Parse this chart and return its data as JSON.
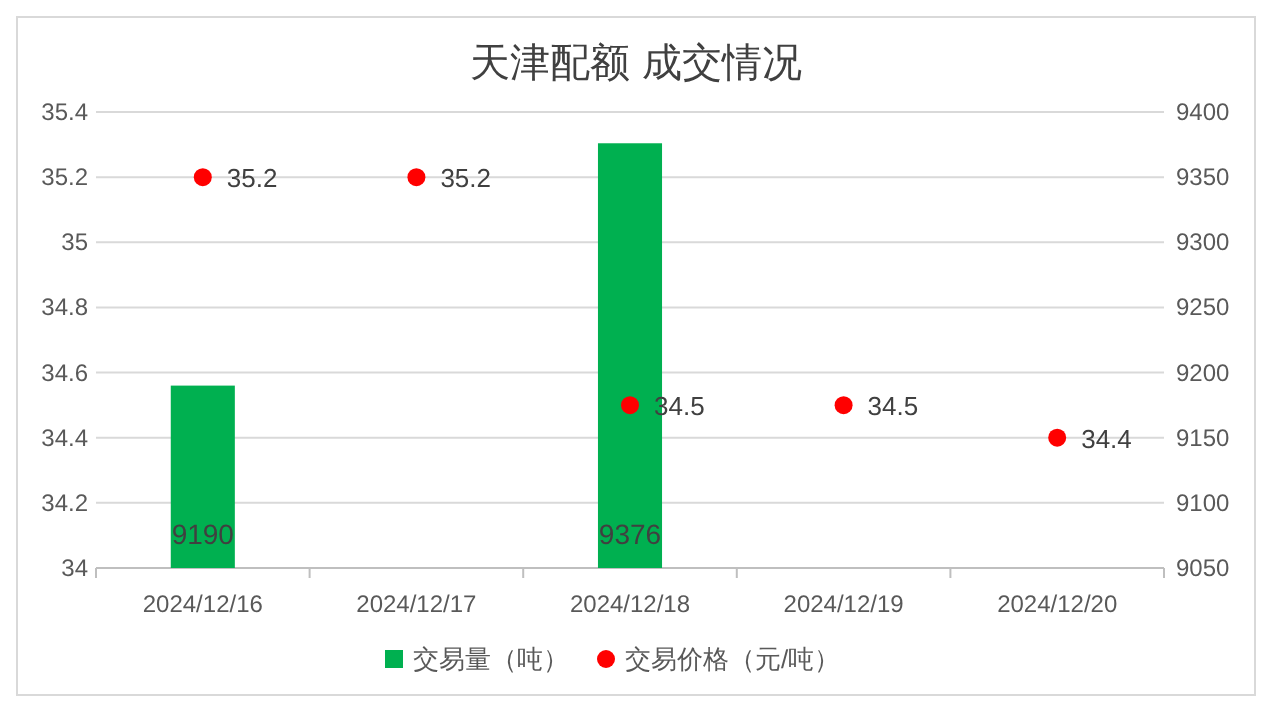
{
  "chart_data": {
    "type": "bar",
    "title": "天津配额 成交情况",
    "categories": [
      "2024/12/16",
      "2024/12/17",
      "2024/12/18",
      "2024/12/19",
      "2024/12/20"
    ],
    "series": [
      {
        "name": "交易量（吨）",
        "axis": "y2",
        "color": "#00b050",
        "values": [
          9190,
          null,
          9376,
          null,
          null
        ]
      },
      {
        "name": "交易价格（元/吨）",
        "type": "scatter",
        "color": "#ff0000",
        "values": [
          35.2,
          35.2,
          34.5,
          34.5,
          34.4
        ]
      }
    ],
    "ylim": [
      34,
      35.4
    ],
    "yticks": [
      34,
      34.2,
      34.4,
      34.6,
      34.8,
      35,
      35.2,
      35.4
    ],
    "y2lim": [
      9050,
      9400
    ],
    "y2ticks": [
      9050,
      9100,
      9150,
      9200,
      9250,
      9300,
      9350,
      9400
    ],
    "grid": "y",
    "legend": "bottom",
    "marker": "circle",
    "data_labels": true
  }
}
